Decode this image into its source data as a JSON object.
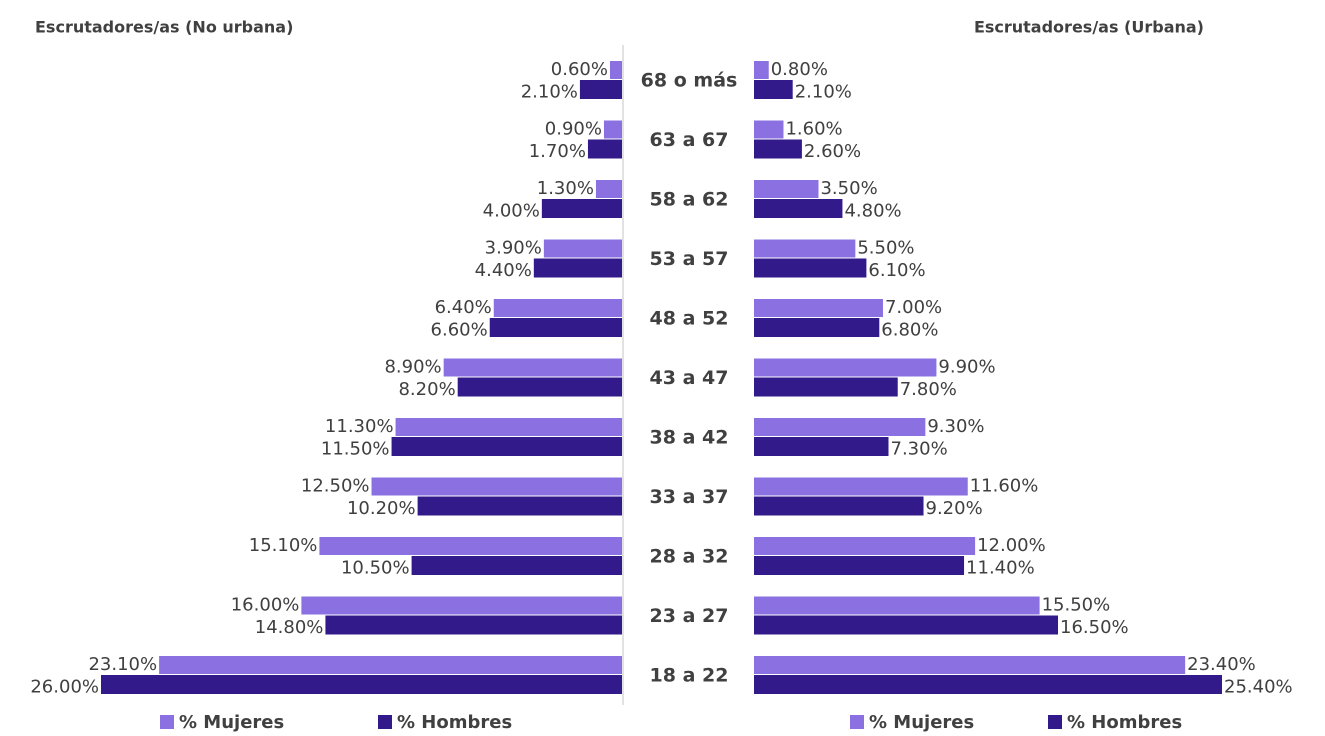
{
  "chart_data": [
    {
      "type": "bar",
      "title": "Escrutadores/as (No urbana)",
      "categories": [
        "68 o más",
        "63 a 67",
        "58 a 62",
        "53 a 57",
        "48 a 52",
        "43 a 47",
        "38 a 42",
        "33 a 37",
        "28 a 32",
        "23 a 27",
        "18 a 22"
      ],
      "series": [
        {
          "name": "% Mujeres",
          "color": "#8a70e0",
          "values": [
            0.6,
            0.9,
            1.3,
            3.9,
            6.4,
            8.9,
            11.3,
            12.5,
            15.1,
            16.0,
            23.1
          ],
          "value_labels": [
            "0.60%",
            "0.90%",
            "1.30%",
            "3.90%",
            "6.40%",
            "8.90%",
            "11.30%",
            "12.50%",
            "15.10%",
            "16.00%",
            "23.10%"
          ]
        },
        {
          "name": "% Hombres",
          "color": "#331a8a",
          "values": [
            2.1,
            1.7,
            4.0,
            4.4,
            6.6,
            8.2,
            11.5,
            10.2,
            10.5,
            14.8,
            26.0
          ],
          "value_labels": [
            "2.10%",
            "1.70%",
            "4.00%",
            "4.40%",
            "6.60%",
            "8.20%",
            "11.50%",
            "10.20%",
            "10.50%",
            "14.80%",
            "26.00%"
          ]
        }
      ]
    },
    {
      "type": "bar",
      "title": "Escrutadores/as (Urbana)",
      "series": [
        {
          "name": "% Mujeres",
          "color": "#8a70e0",
          "values": [
            0.8,
            1.6,
            3.5,
            5.5,
            7.0,
            9.9,
            9.3,
            11.6,
            12.0,
            15.5,
            23.4
          ],
          "value_labels": [
            "0.80%",
            "1.60%",
            "3.50%",
            "5.50%",
            "7.00%",
            "9.90%",
            "9.30%",
            "11.60%",
            "12.00%",
            "15.50%",
            "23.40%"
          ]
        },
        {
          "name": "% Hombres",
          "color": "#331a8a",
          "values": [
            2.1,
            2.6,
            4.8,
            6.1,
            6.8,
            7.8,
            7.3,
            9.2,
            11.4,
            16.5,
            25.4
          ],
          "value_labels": [
            "2.10%",
            "2.60%",
            "4.80%",
            "6.10%",
            "6.80%",
            "7.80%",
            "7.30%",
            "9.20%",
            "11.40%",
            "16.50%",
            "25.40%"
          ]
        }
      ]
    }
  ]
}
